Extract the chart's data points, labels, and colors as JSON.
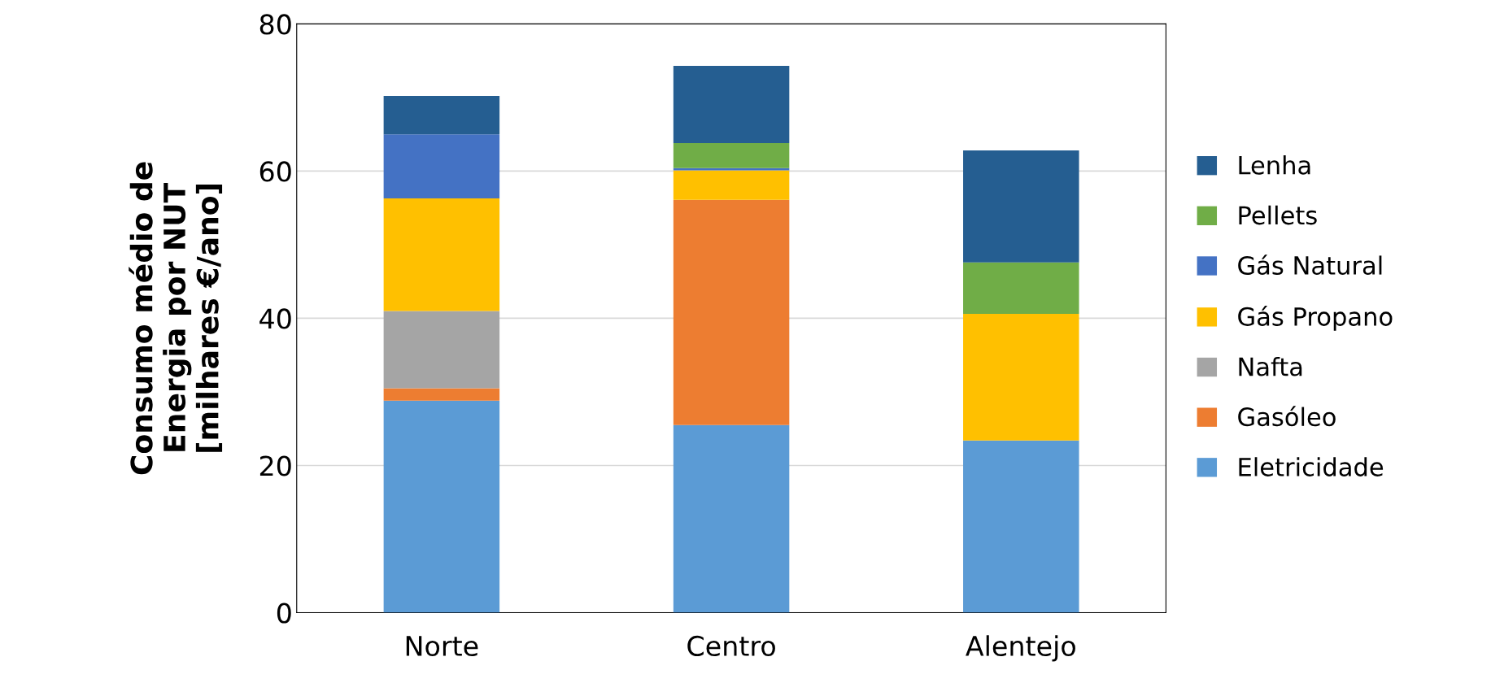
{
  "chart_data": {
    "type": "bar",
    "stacked": true,
    "ylabel": "Consumo médio de\nEnergia por NUT\n[milhares €/ano]",
    "categories": [
      "Norte",
      "Centro",
      "Alentejo"
    ],
    "series": [
      {
        "name": "Eletricidade",
        "color": "#5b9bd5",
        "values": [
          28.8,
          25.5,
          23.4
        ]
      },
      {
        "name": "Gasóleo",
        "color": "#ed7d31",
        "values": [
          1.7,
          30.6,
          0
        ]
      },
      {
        "name": "Nafta",
        "color": "#a5a5a5",
        "values": [
          10.5,
          0,
          0
        ]
      },
      {
        "name": "Gás Propano",
        "color": "#ffc000",
        "values": [
          15.3,
          4.0,
          17.2
        ]
      },
      {
        "name": "Gás Natural",
        "color": "#4472c4",
        "values": [
          8.7,
          0.3,
          0
        ]
      },
      {
        "name": "Pellets",
        "color": "#70ad47",
        "values": [
          0,
          3.4,
          7.0
        ]
      },
      {
        "name": "Lenha",
        "color": "#255e91",
        "values": [
          5.2,
          10.5,
          15.2
        ]
      }
    ],
    "ylim": [
      0,
      80
    ],
    "yticks": [
      0,
      20,
      40,
      60,
      80
    ],
    "grid": "y",
    "legend": "right"
  }
}
